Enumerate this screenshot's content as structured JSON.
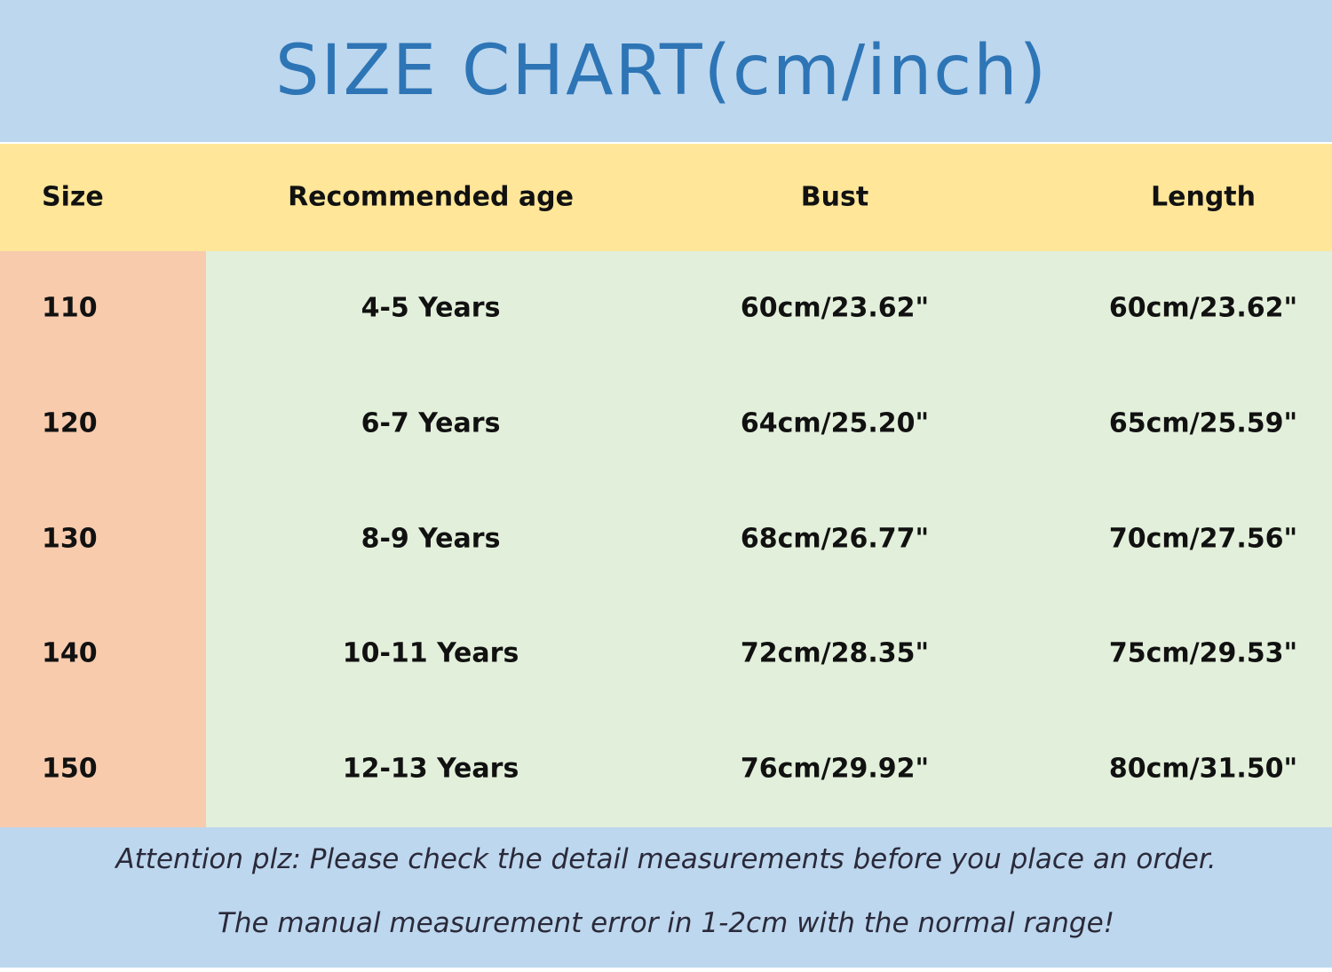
{
  "title": "SIZE CHART(cm/inch)",
  "table": {
    "headers": [
      "Size",
      "Recommended age",
      "Bust",
      "Length"
    ],
    "rows": [
      [
        "110",
        "4-5 Years",
        "60cm/23.62\"",
        "60cm/23.62\""
      ],
      [
        "120",
        "6-7 Years",
        "64cm/25.20\"",
        "65cm/25.59\""
      ],
      [
        "130",
        "8-9 Years",
        "68cm/26.77\"",
        "70cm/27.56\""
      ],
      [
        "140",
        "10-11 Years",
        "72cm/28.35\"",
        "75cm/29.53\""
      ],
      [
        "150",
        "12-13 Years",
        "76cm/29.92\"",
        "80cm/31.50\""
      ]
    ]
  },
  "notes": [
    "Attention plz:  Please check the detail measurements before you place an order.",
    "The manual measurement error in 1-2cm with the normal range!"
  ],
  "colors": {
    "title_band": "#bdd7ee",
    "title_text": "#2e75b6",
    "header_row": "#ffe699",
    "size_column": "#f8cbad",
    "data_cells": "#e2efda"
  }
}
